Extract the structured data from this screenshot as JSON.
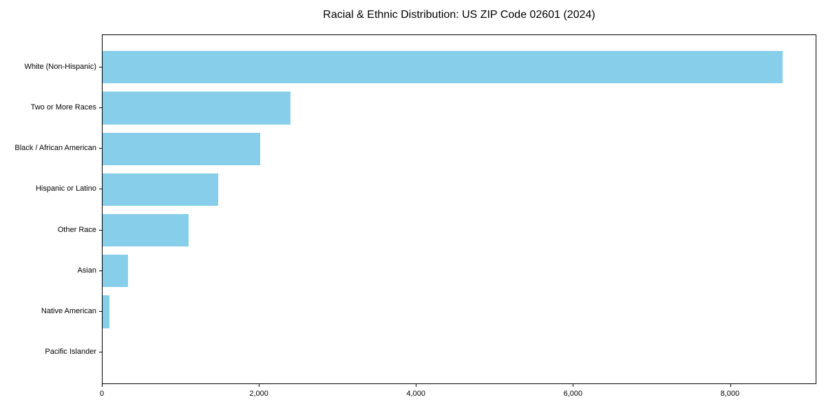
{
  "chart_data": {
    "type": "bar",
    "orientation": "horizontal",
    "title": "Racial & Ethnic Distribution: US ZIP Code 02601 (2024)",
    "categories": [
      "White (Non-Hispanic)",
      "Two or More Races",
      "Black / African American",
      "Hispanic or Latino",
      "Other Race",
      "Asian",
      "Native American",
      "Pacific Islander"
    ],
    "values": [
      8665,
      2390,
      2010,
      1475,
      1100,
      325,
      90,
      0
    ],
    "bar_color": "#87CEEB",
    "axis_color": "#000000",
    "text_color": "#000000",
    "background_color": "#ffffff",
    "xlim": [
      0,
      9100
    ],
    "xticks": [
      0,
      2000,
      4000,
      6000,
      8000
    ],
    "xtick_labels": [
      "0",
      "2,000",
      "4,000",
      "6,000",
      "8,000"
    ],
    "xlabel": "",
    "ylabel": "",
    "grid": false,
    "legend": null
  }
}
